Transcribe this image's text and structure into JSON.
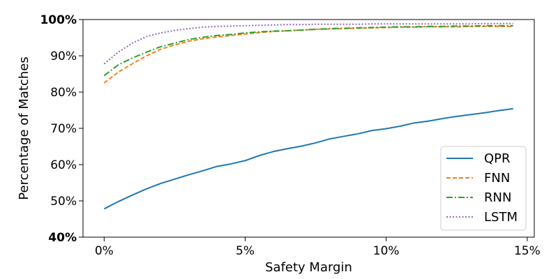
{
  "chart_data": {
    "type": "line",
    "title": "",
    "xlabel": "Safety Margin",
    "ylabel": "Percentage of Matches",
    "xlim": [
      -0.75,
      15.25
    ],
    "ylim": [
      40,
      100
    ],
    "x_ticks": [
      {
        "value": 0,
        "label": "0%"
      },
      {
        "value": 5,
        "label": "5%"
      },
      {
        "value": 10,
        "label": "10%"
      },
      {
        "value": 15,
        "label": "15%"
      }
    ],
    "y_ticks": [
      {
        "value": 40,
        "label": "40%",
        "bold": true
      },
      {
        "value": 50,
        "label": "50%",
        "bold": false
      },
      {
        "value": 60,
        "label": "60%",
        "bold": false
      },
      {
        "value": 70,
        "label": "70%",
        "bold": false
      },
      {
        "value": 80,
        "label": "80%",
        "bold": false
      },
      {
        "value": 90,
        "label": "90%",
        "bold": false
      },
      {
        "value": 100,
        "label": "100%",
        "bold": true
      }
    ],
    "grid": false,
    "legend_position": "bottom-right",
    "x": [
      0,
      0.5,
      1,
      1.5,
      2,
      2.5,
      3,
      3.5,
      4,
      4.5,
      5,
      5.5,
      6,
      6.5,
      7,
      7.5,
      8,
      8.5,
      9,
      9.5,
      10,
      10.5,
      11,
      11.5,
      12,
      12.5,
      13,
      13.5,
      14,
      14.5
    ],
    "series": [
      {
        "name": "QPR",
        "color": "#1f77b4",
        "dash": "solid",
        "values": [
          47.8,
          49.8,
          51.6,
          53.3,
          54.8,
          56.0,
          57.2,
          58.3,
          59.5,
          60.2,
          61.1,
          62.5,
          63.6,
          64.4,
          65.1,
          66.0,
          67.1,
          67.8,
          68.5,
          69.4,
          69.9,
          70.6,
          71.5,
          72.0,
          72.7,
          73.3,
          73.8,
          74.3,
          74.9,
          75.4
        ]
      },
      {
        "name": "FNN",
        "color": "#ff7f0e",
        "dash": "dashed",
        "values": [
          82.5,
          85.5,
          87.8,
          90.0,
          91.8,
          93.0,
          94.0,
          94.7,
          95.2,
          95.6,
          96.0,
          96.4,
          96.7,
          96.9,
          97.1,
          97.3,
          97.4,
          97.5,
          97.6,
          97.7,
          97.8,
          97.9,
          97.9,
          98.0,
          98.0,
          98.0,
          98.1,
          98.1,
          98.1,
          98.1
        ]
      },
      {
        "name": "RNN",
        "color": "#2ca02c",
        "dash": "dashdot",
        "values": [
          84.5,
          87.5,
          89.4,
          91.0,
          92.5,
          93.5,
          94.5,
          95.1,
          95.6,
          95.9,
          96.3,
          96.6,
          96.8,
          96.9,
          97.1,
          97.3,
          97.5,
          97.6,
          97.7,
          97.8,
          97.9,
          98.0,
          98.0,
          98.1,
          98.1,
          98.2,
          98.2,
          98.3,
          98.3,
          98.3
        ]
      },
      {
        "name": "LSTM",
        "color": "#9467bd",
        "dash": "dotted",
        "values": [
          87.8,
          91.0,
          93.5,
          95.3,
          96.3,
          97.0,
          97.5,
          97.9,
          98.1,
          98.2,
          98.3,
          98.4,
          98.5,
          98.6,
          98.6,
          98.7,
          98.7,
          98.7,
          98.7,
          98.8,
          98.8,
          98.8,
          98.8,
          98.8,
          98.8,
          98.8,
          98.8,
          98.9,
          98.9,
          98.9
        ]
      }
    ]
  }
}
